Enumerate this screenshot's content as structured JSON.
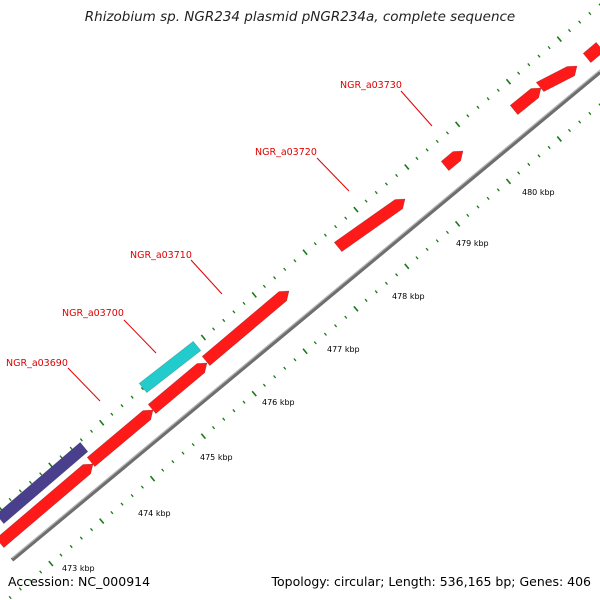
{
  "title": "Rhizobium sp. NGR234 plasmid pNGR234a, complete sequence",
  "accession": "Accession: NC_000914",
  "summary": "Topology: circular; Length: 536,165 bp; Genes: 406",
  "colors": {
    "backbone": "#8a8a8a",
    "gene_forward": "#ff1a1a",
    "gene_cyan": "#22cccc",
    "gene_purple": "#4a3f8c",
    "tick": "#1a7a1a",
    "label": "#e00000"
  },
  "gene_labels": [
    {
      "text": "NGR_a03690"
    },
    {
      "text": "NGR_a03700"
    },
    {
      "text": "NGR_a03710"
    },
    {
      "text": "NGR_a03720"
    },
    {
      "text": "NGR_a03730"
    }
  ],
  "ruler_labels": [
    {
      "text": "473 kbp"
    },
    {
      "text": "474 kbp"
    },
    {
      "text": "475 kbp"
    },
    {
      "text": "476 kbp"
    },
    {
      "text": "477 kbp"
    },
    {
      "text": "478 kbp"
    },
    {
      "text": "479 kbp"
    },
    {
      "text": "480 kbp"
    }
  ]
}
